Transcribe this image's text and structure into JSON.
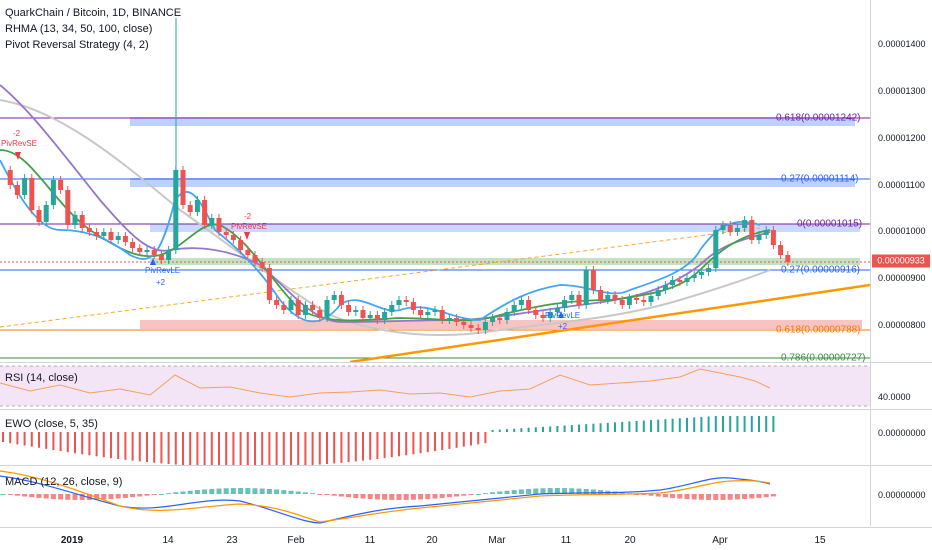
{
  "header": {
    "symbol_line": "QuarkChain / Bitcoin, 1D, BINANCE",
    "indicator_1": "RHMA (13, 34, 50, 100, close)",
    "indicator_2": "Pivot Reversal Strategy (4, 2)"
  },
  "price_axis": {
    "ticks": [
      "0.00001400",
      "0.00001300",
      "0.00001200",
      "0.00001100",
      "0.00001000",
      "0.00000900",
      "0.00000800"
    ],
    "current_price": "0.00000933",
    "current_price_color": "#ef5350"
  },
  "fib_levels": [
    {
      "label": "0.618(0.00001242)",
      "color": "#7b1fa2"
    },
    {
      "label": "0.27(0.00001114)",
      "color": "#2962ff"
    },
    {
      "label": "0(0.00001015)",
      "color": "#7b1fa2"
    },
    {
      "label": "0.27(0.00000916)",
      "color": "#2962ff"
    },
    {
      "label": "0.618(0.00000788)",
      "color": "#f57c00"
    },
    {
      "label": "0.786(0.00000727)",
      "color": "#388e3c"
    }
  ],
  "pivot_signals": [
    {
      "label": "-2",
      "color": "#f23645"
    },
    {
      "label": "PivRevSE",
      "color": "#f23645"
    },
    {
      "label": "PivRevLE",
      "color": "#2962ff"
    },
    {
      "label": "+2",
      "color": "#2962ff"
    },
    {
      "label": "-2",
      "color": "#f23645"
    },
    {
      "label": "PivRevSE",
      "color": "#f23645"
    },
    {
      "label": "PivRevLE",
      "color": "#2962ff"
    },
    {
      "label": "+2",
      "color": "#2962ff"
    }
  ],
  "rsi": {
    "title": "RSI (14, close)",
    "tick": "40.0000"
  },
  "ewo": {
    "title": "EWO (close, 5, 35)",
    "tick": "0.00000000"
  },
  "macd": {
    "title": "MACD (12, 26, close, 9)",
    "tick": "0.00000000"
  },
  "time_axis": [
    "2019",
    "14",
    "23",
    "Feb",
    "11",
    "20",
    "Mar",
    "11",
    "20",
    "Apr",
    "15"
  ],
  "colors": {
    "up": "#26a69a",
    "down": "#ef5350",
    "macd_line": "#2962ff",
    "signal_line": "#ff9800",
    "rsi_line": "#f5a05a",
    "rsi_band": "#f3e5f5"
  }
}
